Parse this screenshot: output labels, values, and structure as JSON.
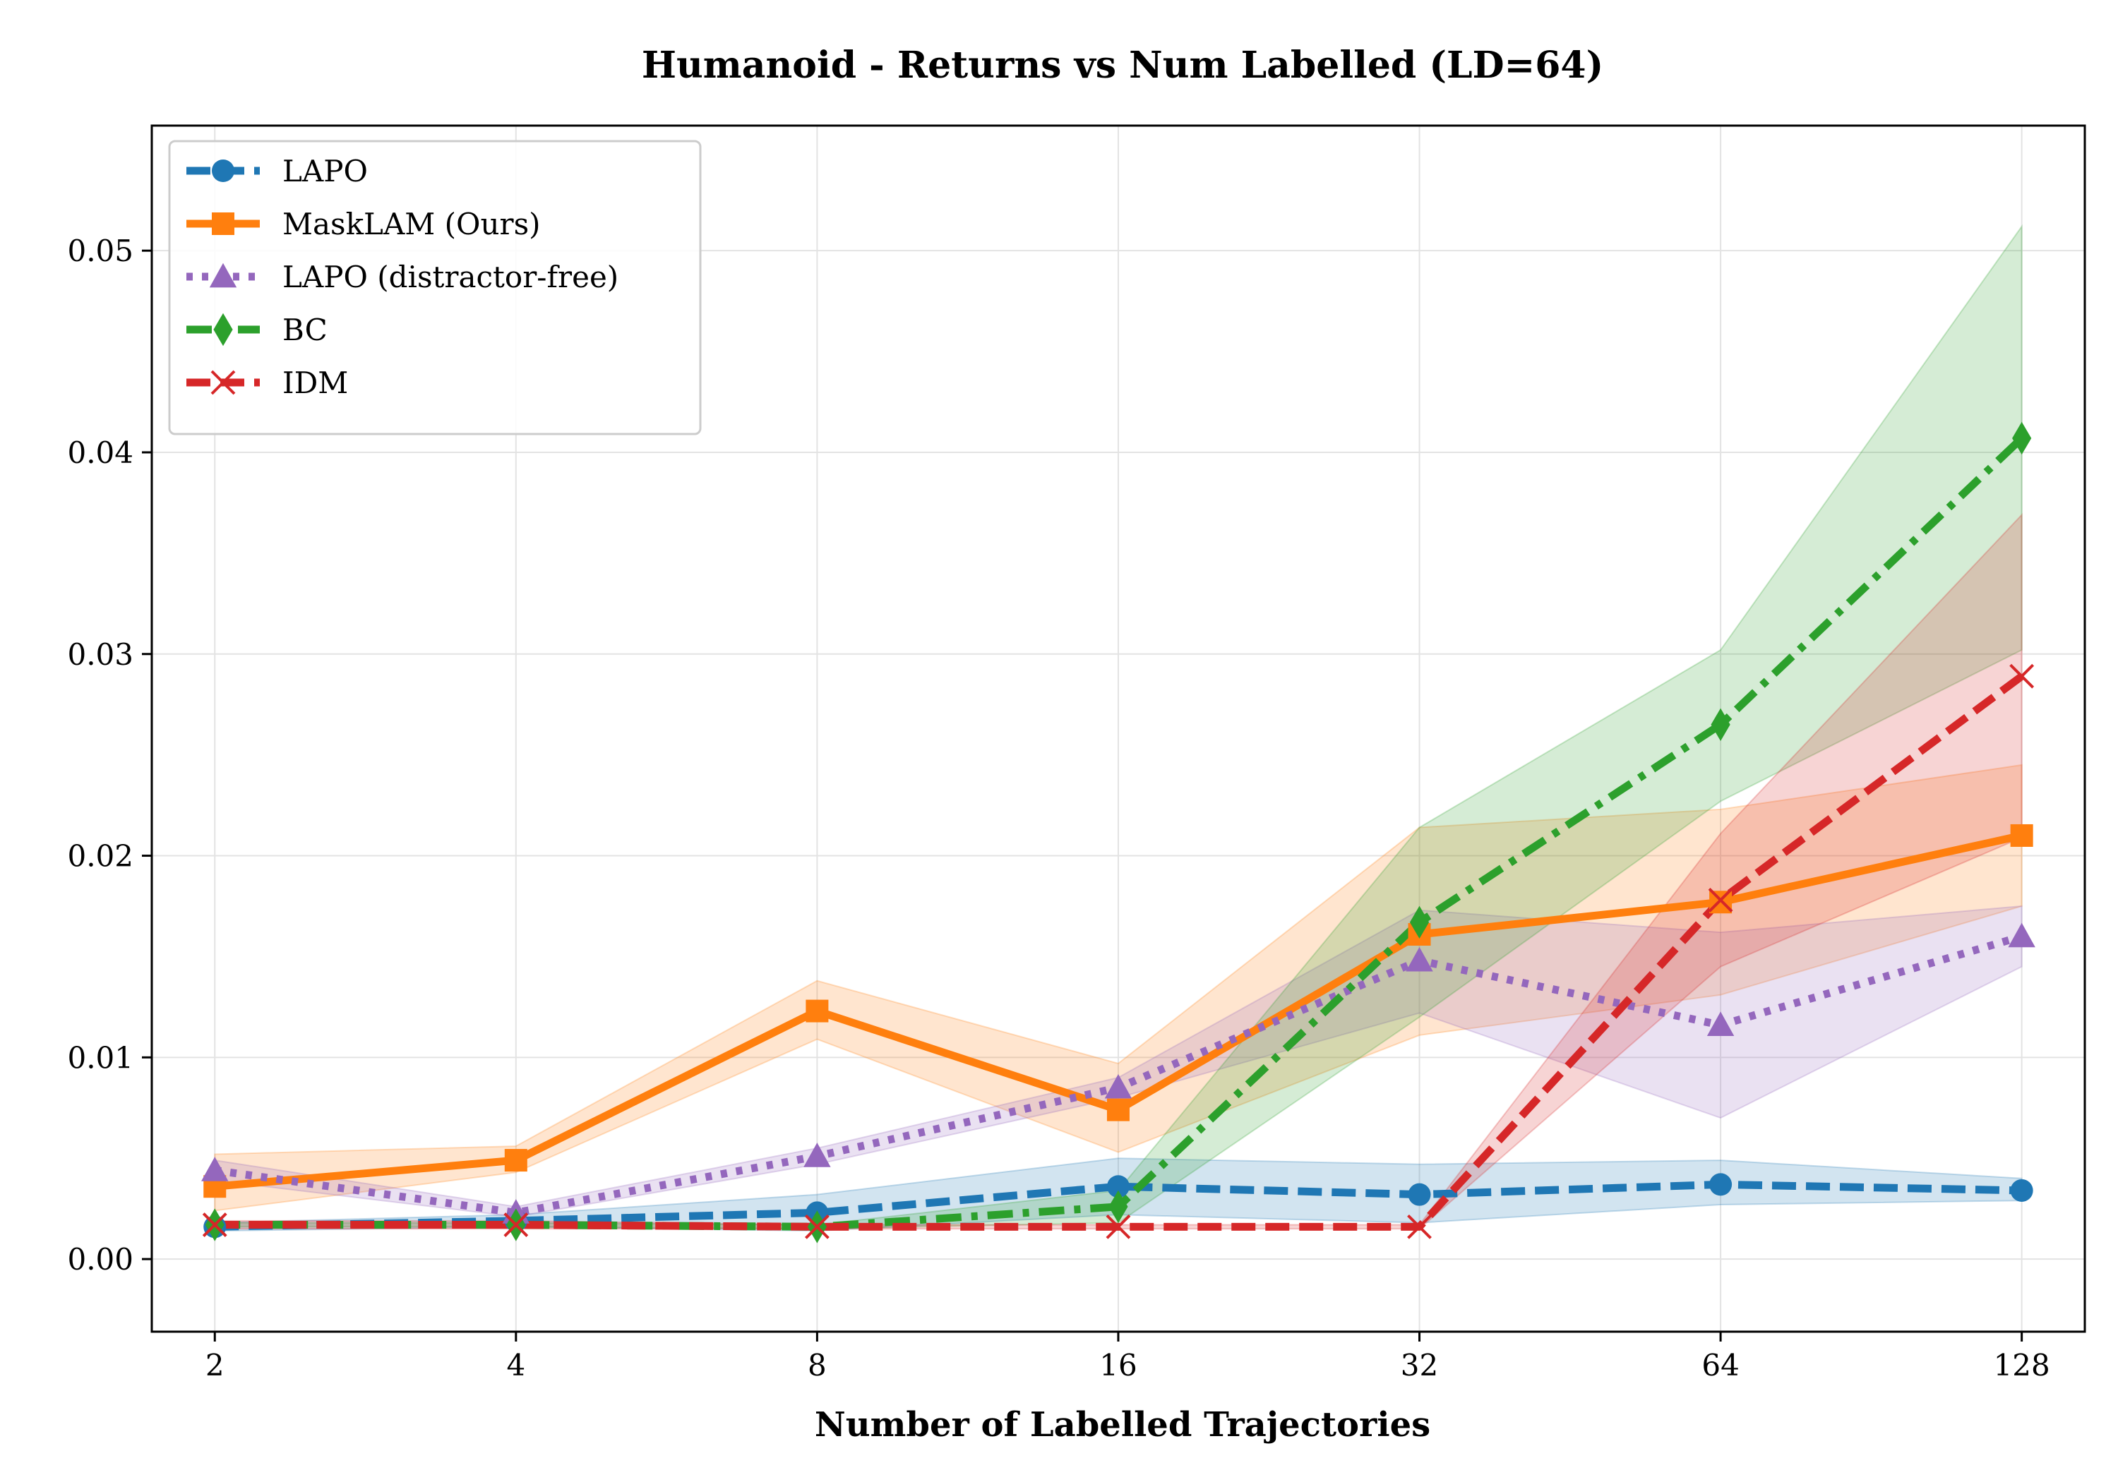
{
  "chart_data": {
    "type": "line",
    "title": "Humanoid - Returns vs Num Labelled (LD=64)",
    "xlabel": "Number of Labelled Trajectories",
    "ylabel": "",
    "x_scale": "log2",
    "x": [
      2,
      4,
      8,
      16,
      32,
      64,
      128
    ],
    "x_tick_labels": [
      "2",
      "4",
      "8",
      "16",
      "32",
      "64",
      "128"
    ],
    "xlim": [
      1.73,
      148
    ],
    "ylim": [
      -0.0036,
      0.0562
    ],
    "y_ticks": [
      0.0,
      0.01,
      0.02,
      0.03,
      0.04,
      0.05
    ],
    "y_tick_labels": [
      "0.00",
      "0.01",
      "0.02",
      "0.03",
      "0.04",
      "0.05"
    ],
    "grid": true,
    "legend_position": "top-left",
    "series": [
      {
        "name": "LAPO",
        "color": "#1f77b4",
        "linestyle": "dashed",
        "marker": "circle",
        "values": [
          0.0016,
          0.0019,
          0.0023,
          0.0036,
          0.0032,
          0.0037,
          0.0034
        ],
        "lower": [
          0.0014,
          0.0016,
          0.0014,
          0.0022,
          0.0018,
          0.0027,
          0.0029
        ],
        "upper": [
          0.0018,
          0.0022,
          0.0032,
          0.005,
          0.0047,
          0.0049,
          0.004
        ]
      },
      {
        "name": "MaskLAM (Ours)",
        "color": "#ff7f0e",
        "linestyle": "solid",
        "marker": "square",
        "values": [
          0.0036,
          0.0049,
          0.0123,
          0.0074,
          0.0161,
          0.0177,
          0.021
        ],
        "lower": [
          0.0024,
          0.0043,
          0.0109,
          0.0053,
          0.0111,
          0.0131,
          0.0175
        ],
        "upper": [
          0.0052,
          0.0056,
          0.0138,
          0.0097,
          0.0214,
          0.0223,
          0.0245
        ]
      },
      {
        "name": "LAPO (distractor-free)",
        "color": "#9467bd",
        "linestyle": "dotted",
        "marker": "triangle",
        "values": [
          0.0044,
          0.0023,
          0.0051,
          0.0085,
          0.0148,
          0.0116,
          0.016
        ],
        "lower": [
          0.0039,
          0.0021,
          0.0047,
          0.008,
          0.0122,
          0.007,
          0.0145
        ],
        "upper": [
          0.0049,
          0.0026,
          0.0055,
          0.009,
          0.0173,
          0.0162,
          0.0175
        ]
      },
      {
        "name": "BC",
        "color": "#2ca02c",
        "linestyle": "dashdot",
        "marker": "diamond",
        "values": [
          0.0017,
          0.0017,
          0.0016,
          0.0026,
          0.0167,
          0.0265,
          0.0407
        ],
        "lower": [
          0.0016,
          0.0016,
          0.0015,
          0.0018,
          0.012,
          0.0227,
          0.0302
        ],
        "upper": [
          0.0018,
          0.0018,
          0.0017,
          0.0034,
          0.0214,
          0.0302,
          0.0512
        ]
      },
      {
        "name": "IDM",
        "color": "#d62728",
        "linestyle": "dashed",
        "marker": "x",
        "values": [
          0.0017,
          0.0017,
          0.0016,
          0.0016,
          0.0016,
          0.0178,
          0.0289
        ],
        "lower": [
          0.0015,
          0.0015,
          0.0015,
          0.0015,
          0.0015,
          0.0145,
          0.0209
        ],
        "upper": [
          0.0019,
          0.0019,
          0.0017,
          0.0017,
          0.0017,
          0.0211,
          0.0369
        ]
      }
    ]
  }
}
